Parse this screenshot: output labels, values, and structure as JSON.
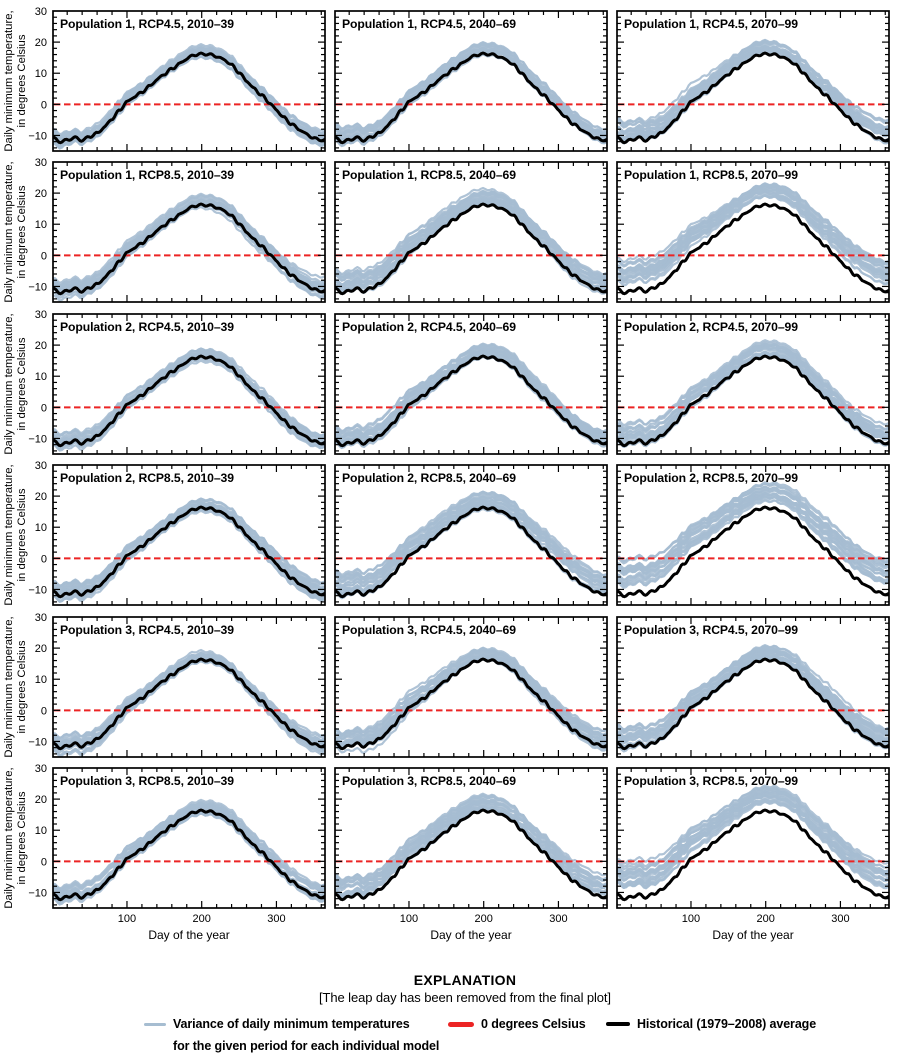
{
  "figure": {
    "legend": {
      "heading": "EXPLANATION",
      "note": "[The leap day has been removed from the final plot]",
      "items": [
        {
          "name": "variance-line",
          "color": "#a6bdd1",
          "label_line1": "Variance of daily minimum temperatures",
          "label_line2": "for the given period for each individual model"
        },
        {
          "name": "zero-line",
          "color": "#ec2424",
          "label_line1": "0 degrees Celsius"
        },
        {
          "name": "historical-line",
          "color": "#000000",
          "label_line1": "Historical (1979–2008) average"
        }
      ]
    }
  },
  "chart_data": {
    "type": "line",
    "grid": false,
    "xlabel": "Day of the year",
    "ylabel_lines": [
      "Daily minimum temperature,",
      "in degrees Celsius"
    ],
    "xlim": [
      1,
      365
    ],
    "ylim": [
      -15,
      30
    ],
    "xticks_major": [
      100,
      200,
      300
    ],
    "xtick_minor_step": 20,
    "yticks_major": [
      30,
      20,
      10,
      0,
      -10
    ],
    "ytick_labels": [
      "30",
      "20",
      "10",
      "0",
      "−10"
    ],
    "ytick_minor_step": 2,
    "colors": {
      "variance_band": "#a6bdd1",
      "zero_line": "#ec2424",
      "historical": "#000000",
      "frame": "#000000"
    },
    "zero_line": {
      "y": 0,
      "style": "dashed",
      "label": "0 degrees Celsius"
    },
    "historical": {
      "label": "Historical (1979–2008) average",
      "x": [
        1,
        10,
        20,
        30,
        40,
        50,
        60,
        70,
        80,
        90,
        100,
        110,
        120,
        130,
        140,
        150,
        160,
        170,
        180,
        190,
        200,
        210,
        220,
        230,
        240,
        250,
        260,
        270,
        280,
        290,
        300,
        310,
        320,
        330,
        340,
        350,
        360,
        365
      ],
      "y": [
        -11.0,
        -12.0,
        -11.2,
        -10.6,
        -11.8,
        -10.6,
        -9.2,
        -7.0,
        -4.6,
        -2.2,
        0.6,
        2.6,
        4.2,
        5.8,
        7.6,
        9.6,
        11.6,
        13.2,
        14.6,
        15.6,
        16.1,
        16.3,
        15.6,
        14.2,
        12.4,
        10.2,
        7.8,
        5.2,
        2.8,
        0.4,
        -1.8,
        -4.0,
        -6.2,
        -8.2,
        -9.8,
        -10.8,
        -11.2,
        -11.3
      ]
    },
    "variance_band": {
      "label": "Variance of daily minimum temperatures for the given period for each individual model",
      "n_models": 20
    },
    "panels": [
      {
        "title": "Population 1, RCP4.5, 2010–39",
        "row": 0,
        "col": 0,
        "shift_winter": 0.6,
        "shift_summer": 0.7,
        "spread": 1.6
      },
      {
        "title": "Population 1, RCP4.5, 2040–69",
        "row": 0,
        "col": 1,
        "shift_winter": 1.6,
        "shift_summer": 1.5,
        "spread": 1.8
      },
      {
        "title": "Population 1, RCP4.5, 2070–99",
        "row": 0,
        "col": 2,
        "shift_winter": 2.6,
        "shift_summer": 2.2,
        "spread": 2.0
      },
      {
        "title": "Population 1, RCP8.5, 2010–39",
        "row": 1,
        "col": 0,
        "shift_winter": 1.0,
        "shift_summer": 0.9,
        "spread": 1.8
      },
      {
        "title": "Population 1, RCP8.5, 2040–69",
        "row": 1,
        "col": 1,
        "shift_winter": 2.8,
        "shift_summer": 2.2,
        "spread": 2.2
      },
      {
        "title": "Population 1, RCP8.5, 2070–99",
        "row": 1,
        "col": 2,
        "shift_winter": 6.5,
        "shift_summer": 4.5,
        "spread": 2.4
      },
      {
        "title": "Population 2, RCP4.5, 2010–39",
        "row": 2,
        "col": 0,
        "shift_winter": 0.7,
        "shift_summer": 0.8,
        "spread": 1.6
      },
      {
        "title": "Population 2, RCP4.5, 2040–69",
        "row": 2,
        "col": 1,
        "shift_winter": 1.8,
        "shift_summer": 1.6,
        "spread": 2.0
      },
      {
        "title": "Population 2, RCP4.5, 2070–99",
        "row": 2,
        "col": 2,
        "shift_winter": 2.8,
        "shift_summer": 2.3,
        "spread": 2.2
      },
      {
        "title": "Population 2, RCP8.5, 2010–39",
        "row": 3,
        "col": 0,
        "shift_winter": 1.2,
        "shift_summer": 1.0,
        "spread": 1.9
      },
      {
        "title": "Population 2, RCP8.5, 2040–69",
        "row": 3,
        "col": 1,
        "shift_winter": 3.2,
        "shift_summer": 2.6,
        "spread": 2.6
      },
      {
        "title": "Population 2, RCP8.5, 2070–99",
        "row": 3,
        "col": 2,
        "shift_winter": 7.0,
        "shift_summer": 5.0,
        "spread": 2.8
      },
      {
        "title": "Population 3, RCP4.5, 2010–39",
        "row": 4,
        "col": 0,
        "shift_winter": 0.8,
        "shift_summer": 0.8,
        "spread": 1.7
      },
      {
        "title": "Population 3, RCP4.5, 2040–69",
        "row": 4,
        "col": 1,
        "shift_winter": 1.9,
        "shift_summer": 1.7,
        "spread": 2.0
      },
      {
        "title": "Population 3, RCP4.5, 2070–99",
        "row": 4,
        "col": 2,
        "shift_winter": 2.9,
        "shift_summer": 2.4,
        "spread": 2.1
      },
      {
        "title": "Population 3, RCP8.5, 2010–39",
        "row": 5,
        "col": 0,
        "shift_winter": 1.3,
        "shift_summer": 1.1,
        "spread": 1.9
      },
      {
        "title": "Population 3, RCP8.5, 2040–69",
        "row": 5,
        "col": 1,
        "shift_winter": 3.4,
        "shift_summer": 2.7,
        "spread": 2.4
      },
      {
        "title": "Population 3, RCP8.5, 2070–99",
        "row": 5,
        "col": 2,
        "shift_winter": 7.0,
        "shift_summer": 5.2,
        "spread": 2.6
      }
    ]
  }
}
